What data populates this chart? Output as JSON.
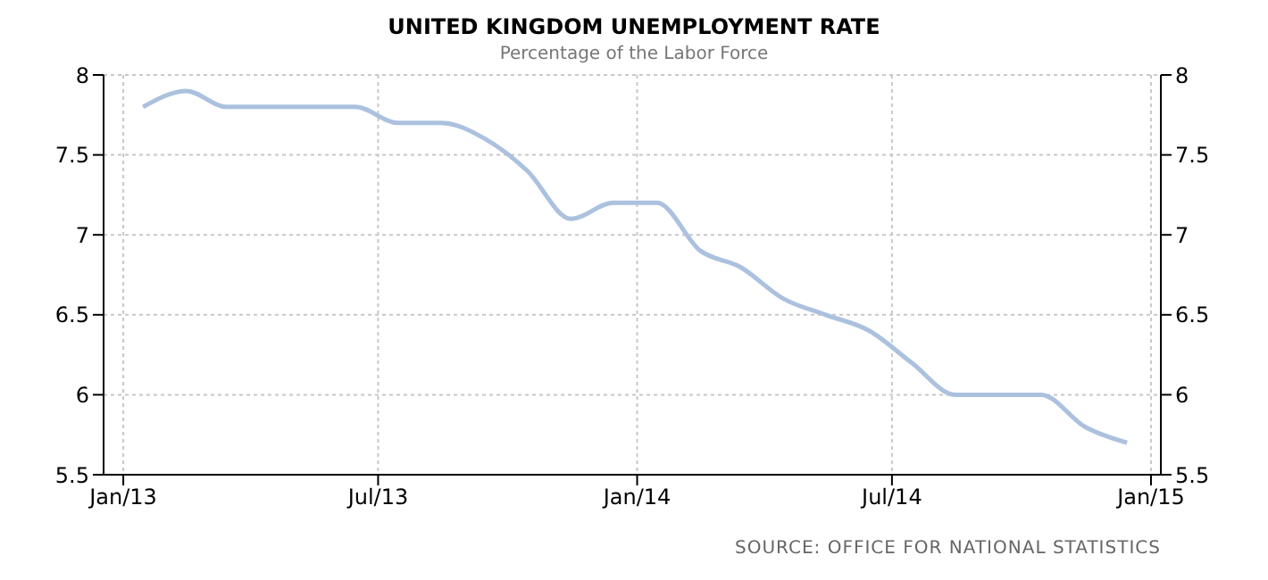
{
  "chart_data": {
    "type": "line",
    "title": "UNITED KINGDOM UNEMPLOYMENT RATE",
    "subtitle": "Percentage of the Labor Force",
    "x": [
      "2013-01-15",
      "2013-02-15",
      "2013-03-15",
      "2013-04-15",
      "2013-05-15",
      "2013-06-15",
      "2013-07-15",
      "2013-08-15",
      "2013-09-15",
      "2013-10-15",
      "2013-11-15",
      "2013-12-15",
      "2014-01-15",
      "2014-02-15",
      "2014-03-15",
      "2014-04-15",
      "2014-05-15",
      "2014-06-15",
      "2014-07-15",
      "2014-08-15",
      "2014-09-15",
      "2014-10-15",
      "2014-11-15",
      "2014-12-15"
    ],
    "series": [
      {
        "color": "#abc1de",
        "values": [
          7.8,
          7.9,
          7.8,
          7.8,
          7.8,
          7.8,
          7.7,
          7.7,
          7.6,
          7.4,
          7.1,
          7.2,
          7.2,
          6.9,
          6.8,
          6.6,
          6.5,
          6.4,
          6.2,
          6.0,
          6.0,
          6.0,
          5.8,
          5.7
        ]
      }
    ],
    "xlim": [
      "2012-12-18",
      "2015-01-08"
    ],
    "xticks": [
      {
        "value": "2013-01-01",
        "label": "Jan/13"
      },
      {
        "value": "2013-07-01",
        "label": "Jul/13"
      },
      {
        "value": "2014-01-01",
        "label": "Jan/14"
      },
      {
        "value": "2014-07-01",
        "label": "Jul/14"
      },
      {
        "value": "2015-01-01",
        "label": "Jan/15"
      }
    ],
    "ylim": [
      5.5,
      8
    ],
    "yticks": [
      5.5,
      6,
      6.5,
      7,
      7.5,
      8
    ],
    "y2lim": [
      5.5,
      8
    ],
    "y2ticks": [
      5.5,
      6,
      6.5,
      7,
      7.5,
      8
    ],
    "grid": true,
    "marker": "none",
    "line_style": "solid",
    "annotations": [
      "SOURCE: OFFICE FOR NATIONAL STATISTICS"
    ]
  }
}
